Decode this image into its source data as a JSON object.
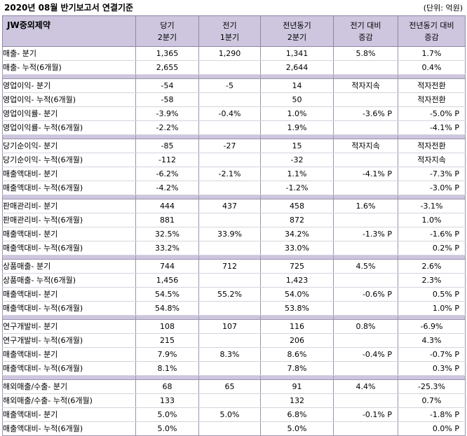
{
  "header": {
    "title": "2020년 08월 반기보고서 연결기준",
    "unit": "(단위: 억원)"
  },
  "columns": {
    "company": "JW중외제약",
    "c1": [
      "당기",
      "2분기"
    ],
    "c2": [
      "전기",
      "1분기"
    ],
    "c3": [
      "전년동기",
      "2분기"
    ],
    "c4": [
      "전기 대비",
      "증감"
    ],
    "c5": [
      "전년동기 대비",
      "증감"
    ]
  },
  "groups": [
    {
      "rows": [
        {
          "label": "매출- 분기",
          "v": [
            "1,365",
            "1,290",
            "1,341",
            "5.8%",
            "1.7%"
          ]
        },
        {
          "label": "매출- 누적(6개월)",
          "v": [
            "2,655",
            "",
            "2,644",
            "",
            "0.4%"
          ]
        }
      ]
    },
    {
      "rows": [
        {
          "label": "영업이익- 분기",
          "v": [
            "-54",
            "-5",
            "14",
            "적자지속",
            "적자전환"
          ]
        },
        {
          "label": "영업이익- 누적(6개월)",
          "v": [
            "-58",
            "",
            "50",
            "",
            "적자전환"
          ]
        },
        {
          "label": "영업이익률- 분기",
          "v": [
            "-3.9%",
            "-0.4%",
            "1.0%",
            "-3.6% P",
            "-5.0% P"
          ]
        },
        {
          "label": "영업이익률- 누적(6개월)",
          "v": [
            "-2.2%",
            "",
            "1.9%",
            "",
            "-4.1% P"
          ]
        }
      ]
    },
    {
      "rows": [
        {
          "label": "당기순이익- 분기",
          "v": [
            "-85",
            "-27",
            "15",
            "적자지속",
            "적자전환"
          ]
        },
        {
          "label": "당기순이익- 누적(6개월)",
          "v": [
            "-112",
            "",
            "-32",
            "",
            "적자지속"
          ]
        },
        {
          "label": "매출액대비- 분기",
          "v": [
            "-6.2%",
            "-2.1%",
            "1.1%",
            "-4.1% P",
            "-7.3% P"
          ]
        },
        {
          "label": "매출액대비- 누적(6개월)",
          "v": [
            "-4.2%",
            "",
            "-1.2%",
            "",
            "-3.0% P"
          ]
        }
      ]
    },
    {
      "rows": [
        {
          "label": "판매관리비- 분기",
          "v": [
            "444",
            "437",
            "458",
            "1.6%",
            "-3.1%"
          ]
        },
        {
          "label": "판매관리비- 누적(6개월)",
          "v": [
            "881",
            "",
            "872",
            "",
            "1.0%"
          ]
        },
        {
          "label": "매출액대비- 분기",
          "v": [
            "32.5%",
            "33.9%",
            "34.2%",
            "-1.3% P",
            "-1.6% P"
          ]
        },
        {
          "label": "매출액대비- 누적(6개월)",
          "v": [
            "33.2%",
            "",
            "33.0%",
            "",
            "0.2% P"
          ]
        }
      ]
    },
    {
      "rows": [
        {
          "label": "상품매출- 분기",
          "v": [
            "744",
            "712",
            "725",
            "4.5%",
            "2.6%"
          ]
        },
        {
          "label": "상품매출- 누적(6개월)",
          "v": [
            "1,456",
            "",
            "1,423",
            "",
            "2.3%"
          ]
        },
        {
          "label": "매출액대비- 분기",
          "v": [
            "54.5%",
            "55.2%",
            "54.0%",
            "-0.6% P",
            "0.5% P"
          ]
        },
        {
          "label": "매출액대비- 누적(6개월)",
          "v": [
            "54.8%",
            "",
            "53.8%",
            "",
            "1.0% P"
          ]
        }
      ]
    },
    {
      "rows": [
        {
          "label": "연구개발비- 분기",
          "v": [
            "108",
            "107",
            "116",
            "0.8%",
            "-6.9%"
          ]
        },
        {
          "label": "연구개발비- 누적(6개월)",
          "v": [
            "215",
            "",
            "206",
            "",
            "4.3%"
          ]
        },
        {
          "label": "매출액대비- 분기",
          "v": [
            "7.9%",
            "8.3%",
            "8.6%",
            "-0.4% P",
            "-0.7% P"
          ]
        },
        {
          "label": "매출액대비- 누적(6개월)",
          "v": [
            "8.1%",
            "",
            "7.8%",
            "",
            "0.3% P"
          ]
        }
      ]
    },
    {
      "rows": [
        {
          "label": "해외매출/수출- 분기",
          "v": [
            "68",
            "65",
            "91",
            "4.4%",
            "-25.3%"
          ]
        },
        {
          "label": "해외매출/수출- 누적(6개월)",
          "v": [
            "133",
            "",
            "132",
            "",
            "0.7%"
          ]
        },
        {
          "label": "매출액대비- 분기",
          "v": [
            "5.0%",
            "5.0%",
            "6.8%",
            "-0.1% P",
            "-1.8% P"
          ]
        },
        {
          "label": "매출액대비- 누적(6개월)",
          "v": [
            "5.0%",
            "",
            "5.0%",
            "",
            "0.0% P"
          ]
        }
      ]
    }
  ]
}
